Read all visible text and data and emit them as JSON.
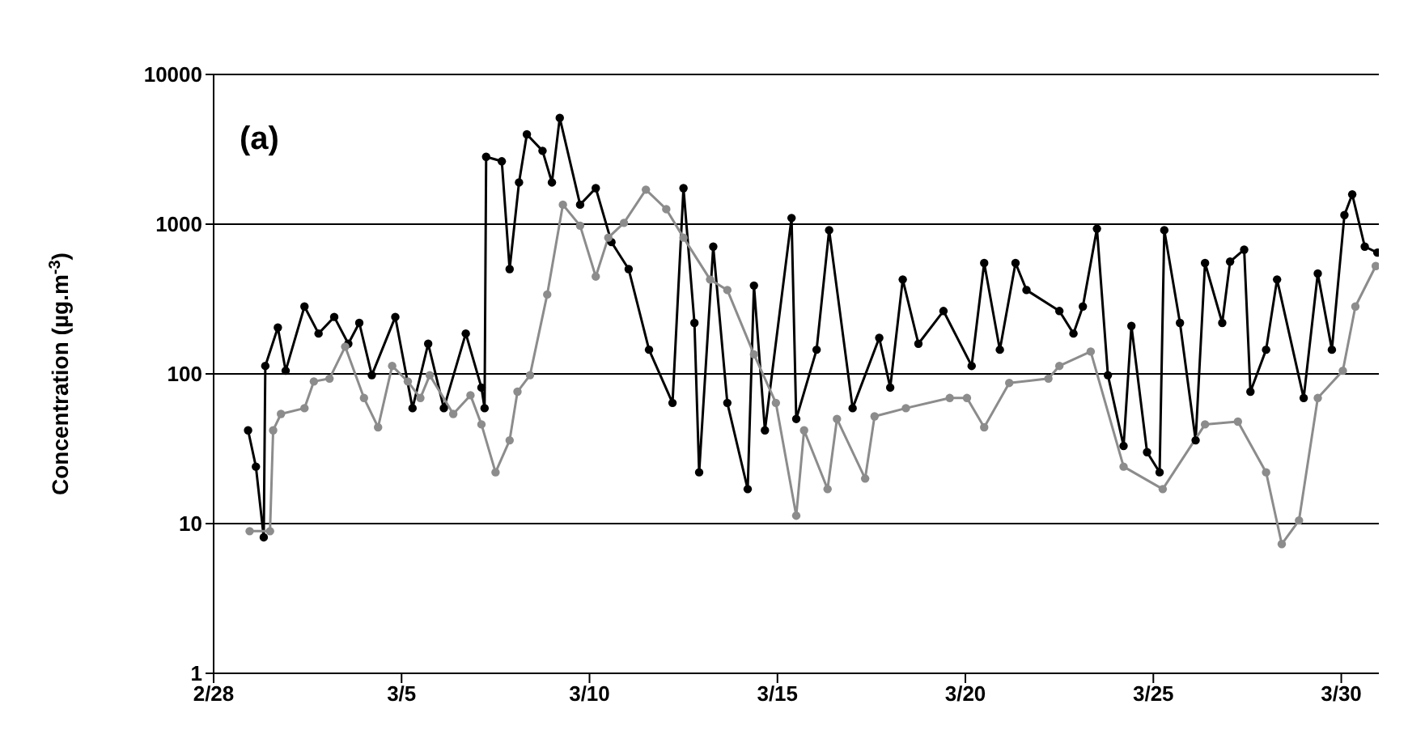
{
  "chart_data": {
    "type": "line",
    "ylabel": "Concentration (µg.m$^{-3}$)",
    "annotations": [
      "(a)"
    ],
    "xlim": [
      "--02-28",
      "--03-31"
    ],
    "xticks": [
      {
        "value": "--02-28",
        "label": "2/28"
      },
      {
        "value": "--03-05",
        "label": "3/5"
      },
      {
        "value": "--03-10",
        "label": "3/10"
      },
      {
        "value": "--03-15",
        "label": "3/15"
      },
      {
        "value": "--03-20",
        "label": "3/20"
      },
      {
        "value": "--03-25",
        "label": "3/25"
      },
      {
        "value": "--03-30",
        "label": "3/30"
      }
    ],
    "ylim": [
      1,
      10000
    ],
    "yticks": [
      1,
      10,
      100,
      1000,
      10000
    ],
    "log": "y",
    "grid": "y",
    "marker": "circle",
    "line_style": "solid",
    "series": [
      {
        "color": "#000000",
        "x": [
          "--02-28T22:00",
          "--03-01T03:00",
          "--03-01T08:00",
          "--03-01T09:00",
          "--03-01T17:00",
          "--03-01T22:00",
          "--03-02T10:00",
          "--03-02T19:00",
          "--03-03T05:00",
          "--03-03T14:00",
          "--03-03T21:00",
          "--03-04T05:00",
          "--03-04T20:00",
          "--03-05T07:00",
          "--03-05T17:00",
          "--03-06T03:00",
          "--03-06T17:00",
          "--03-07T03:00",
          "--03-07T05:00",
          "--03-07T06:00",
          "--03-07T16:00",
          "--03-07T21:00",
          "--03-08T03:00",
          "--03-08T08:00",
          "--03-08T18:00",
          "--03-09T00:00",
          "--03-09T05:00",
          "--03-09T18:00",
          "--03-10T04:00",
          "--03-10T14:00",
          "--03-11T01:00",
          "--03-11T14:00",
          "--03-12T05:00",
          "--03-12T12:00",
          "--03-12T19:00",
          "--03-12T22:00",
          "--03-13T07:00",
          "--03-13T16:00",
          "--03-14T05:00",
          "--03-14T09:00",
          "--03-14T16:00",
          "--03-15T09:00",
          "--03-15T12:00",
          "--03-16T01:00",
          "--03-16T09:00",
          "--03-17T00:00",
          "--03-17T17:00",
          "--03-18T00:00",
          "--03-18T08:00",
          "--03-18T18:00",
          "--03-19T10:00",
          "--03-20T04:00",
          "--03-20T12:00",
          "--03-20T22:00",
          "--03-21T08:00",
          "--03-21T15:00",
          "--03-22T12:00",
          "--03-22T21:00",
          "--03-23T03:00",
          "--03-23T12:00",
          "--03-23T19:00",
          "--03-24T05:00",
          "--03-24T10:00",
          "--03-24T20:00",
          "--03-25T04:00",
          "--03-25T07:00",
          "--03-25T17:00",
          "--03-26T03:00",
          "--03-26T09:00",
          "--03-26T20:00",
          "--03-27T01:00",
          "--03-27T10:00",
          "--03-27T14:00",
          "--03-28T00:00",
          "--03-28T07:00",
          "--03-29T00:00",
          "--03-29T09:00",
          "--03-29T18:00",
          "--03-30T02:00",
          "--03-30T07:00",
          "--03-30T15:00",
          "--03-30T23:00"
        ],
        "values": [
          42,
          24,
          8.1,
          113,
          204,
          105,
          282,
          186,
          240,
          159,
          219,
          98,
          240,
          59,
          159,
          59,
          186,
          81,
          59,
          2820,
          2630,
          501,
          1900,
          3980,
          3090,
          1900,
          5130,
          1350,
          1740,
          759,
          501,
          145,
          64,
          1740,
          219,
          22,
          708,
          64,
          17,
          389,
          42,
          1100,
          50,
          145,
          912,
          59,
          174,
          81,
          427,
          159,
          263,
          113,
          550,
          145,
          550,
          363,
          263,
          186,
          282,
          933,
          98,
          33,
          209,
          30,
          22,
          912,
          219,
          36,
          550,
          219,
          562,
          676,
          76,
          145,
          427,
          69,
          468,
          145,
          1150,
          1580,
          708,
          646
        ]
      },
      {
        "color": "#8c8c8c",
        "x": [
          "--02-28T23:00",
          "--03-01T12:00",
          "--03-01T14:00",
          "--03-01T19:00",
          "--03-02T10:00",
          "--03-02T16:00",
          "--03-03T02:00",
          "--03-03T12:00",
          "--03-04T00:00",
          "--03-04T09:00",
          "--03-04T18:00",
          "--03-05T04:00",
          "--03-05T12:00",
          "--03-05T18:00",
          "--03-06T09:00",
          "--03-06T20:00",
          "--03-07T03:00",
          "--03-07T12:00",
          "--03-07T21:00",
          "--03-08T02:00",
          "--03-08T10:00",
          "--03-08T21:00",
          "--03-09T07:00",
          "--03-09T18:00",
          "--03-10T04:00",
          "--03-10T12:00",
          "--03-10T22:00",
          "--03-11T12:00",
          "--03-12T01:00",
          "--03-12T12:00",
          "--03-13T05:00",
          "--03-13T16:00",
          "--03-14T09:00",
          "--03-14T23:00",
          "--03-15T12:00",
          "--03-15T17:00",
          "--03-16T08:00",
          "--03-16T14:00",
          "--03-17T08:00",
          "--03-17T14:00",
          "--03-18T10:00",
          "--03-19T14:00",
          "--03-20T01:00",
          "--03-20T12:00",
          "--03-21T04:00",
          "--03-22T05:00",
          "--03-22T12:00",
          "--03-23T08:00",
          "--03-24T05:00",
          "--03-25T06:00",
          "--03-26T09:00",
          "--03-27T06:00",
          "--03-28T00:00",
          "--03-28T10:00",
          "--03-28T21:00",
          "--03-29T09:00",
          "--03-30T01:00",
          "--03-30T09:00",
          "--03-30T22:00"
        ],
        "values": [
          8.9,
          8.9,
          42,
          54,
          59,
          89,
          93,
          152,
          69,
          44,
          113,
          89,
          69,
          98,
          54,
          72,
          46,
          22,
          36,
          76,
          98,
          339,
          1350,
          977,
          447,
          813,
          1020,
          1700,
          1260,
          813,
          427,
          363,
          135,
          64,
          11.3,
          42,
          17,
          50,
          20,
          52,
          59,
          69,
          69,
          44,
          87,
          93,
          113,
          141,
          24,
          17,
          46,
          48,
          22,
          7.3,
          10.5,
          69,
          105,
          282,
          525
        ]
      }
    ]
  }
}
